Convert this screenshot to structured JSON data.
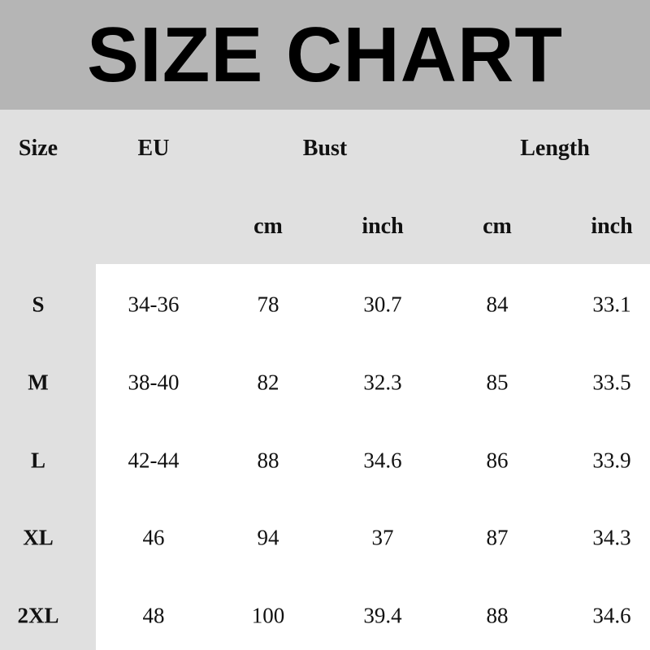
{
  "title": "SIZE CHART",
  "headers": {
    "size": "Size",
    "eu": "EU",
    "bust": "Bust",
    "length": "Length",
    "bust_cm": "cm",
    "bust_inch": "inch",
    "length_cm": "cm",
    "length_inch": "inch"
  },
  "rows": [
    {
      "size": "S",
      "eu": "34-36",
      "bust_cm": "78",
      "bust_inch": "30.7",
      "length_cm": "84",
      "length_inch": "33.1"
    },
    {
      "size": "M",
      "eu": "38-40",
      "bust_cm": "82",
      "bust_inch": "32.3",
      "length_cm": "85",
      "length_inch": "33.5"
    },
    {
      "size": "L",
      "eu": "42-44",
      "bust_cm": "88",
      "bust_inch": "34.6",
      "length_cm": "86",
      "length_inch": "33.9"
    },
    {
      "size": "XL",
      "eu": "46",
      "bust_cm": "94",
      "bust_inch": "37",
      "length_cm": "87",
      "length_inch": "34.3"
    },
    {
      "size": "2XL",
      "eu": "48",
      "bust_cm": "100",
      "bust_inch": "39.4",
      "length_cm": "88",
      "length_inch": "34.6"
    }
  ]
}
